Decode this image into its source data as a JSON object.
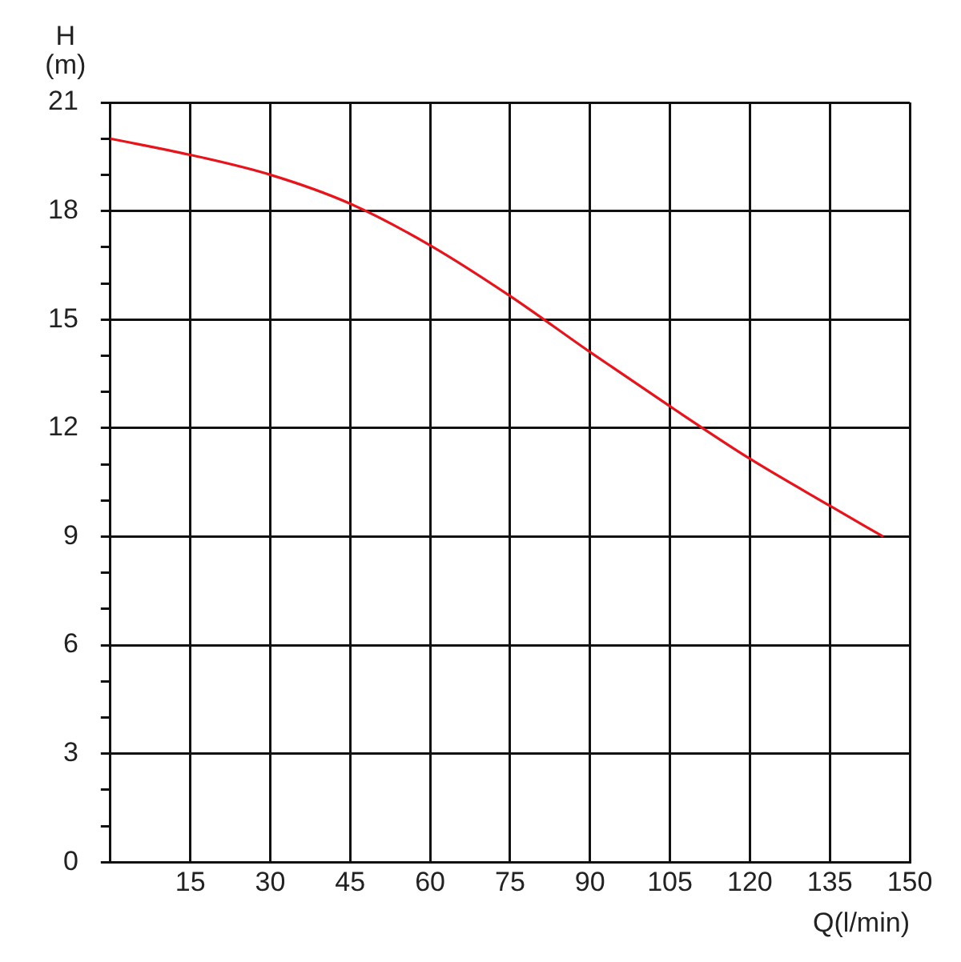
{
  "chart_data": {
    "type": "line",
    "xlabel": "Q(l/min)",
    "ylabel": "H\n(m)",
    "x": [
      0,
      15,
      30,
      45,
      60,
      75,
      90,
      105,
      120,
      135,
      145
    ],
    "series": [
      {
        "color": "#e8141c",
        "values": [
          20.0,
          19.55,
          19.0,
          18.2,
          17.05,
          15.65,
          14.1,
          12.6,
          11.15,
          9.85,
          9.0
        ]
      }
    ],
    "xlim": [
      0,
      150
    ],
    "xticks": [
      15,
      30,
      45,
      60,
      75,
      90,
      105,
      120,
      135,
      150
    ],
    "ylim": [
      0,
      21
    ],
    "yticks": [
      0,
      {
        "value": 1,
        "label": null
      },
      {
        "value": 2,
        "label": null
      },
      3,
      {
        "value": 4,
        "label": null
      },
      {
        "value": 5,
        "label": null
      },
      6,
      {
        "value": 7,
        "label": null
      },
      {
        "value": 8,
        "label": null
      },
      9,
      {
        "value": 10,
        "label": null
      },
      {
        "value": 11,
        "label": null
      },
      12,
      {
        "value": 13,
        "label": null
      },
      {
        "value": 14,
        "label": null
      },
      15,
      {
        "value": 16,
        "label": null
      },
      {
        "value": 17,
        "label": null
      },
      18,
      {
        "value": 19,
        "label": null
      },
      {
        "value": 20,
        "label": null
      },
      21
    ],
    "grid": true,
    "marker": "none",
    "line_style": "solid",
    "legend": false
  }
}
